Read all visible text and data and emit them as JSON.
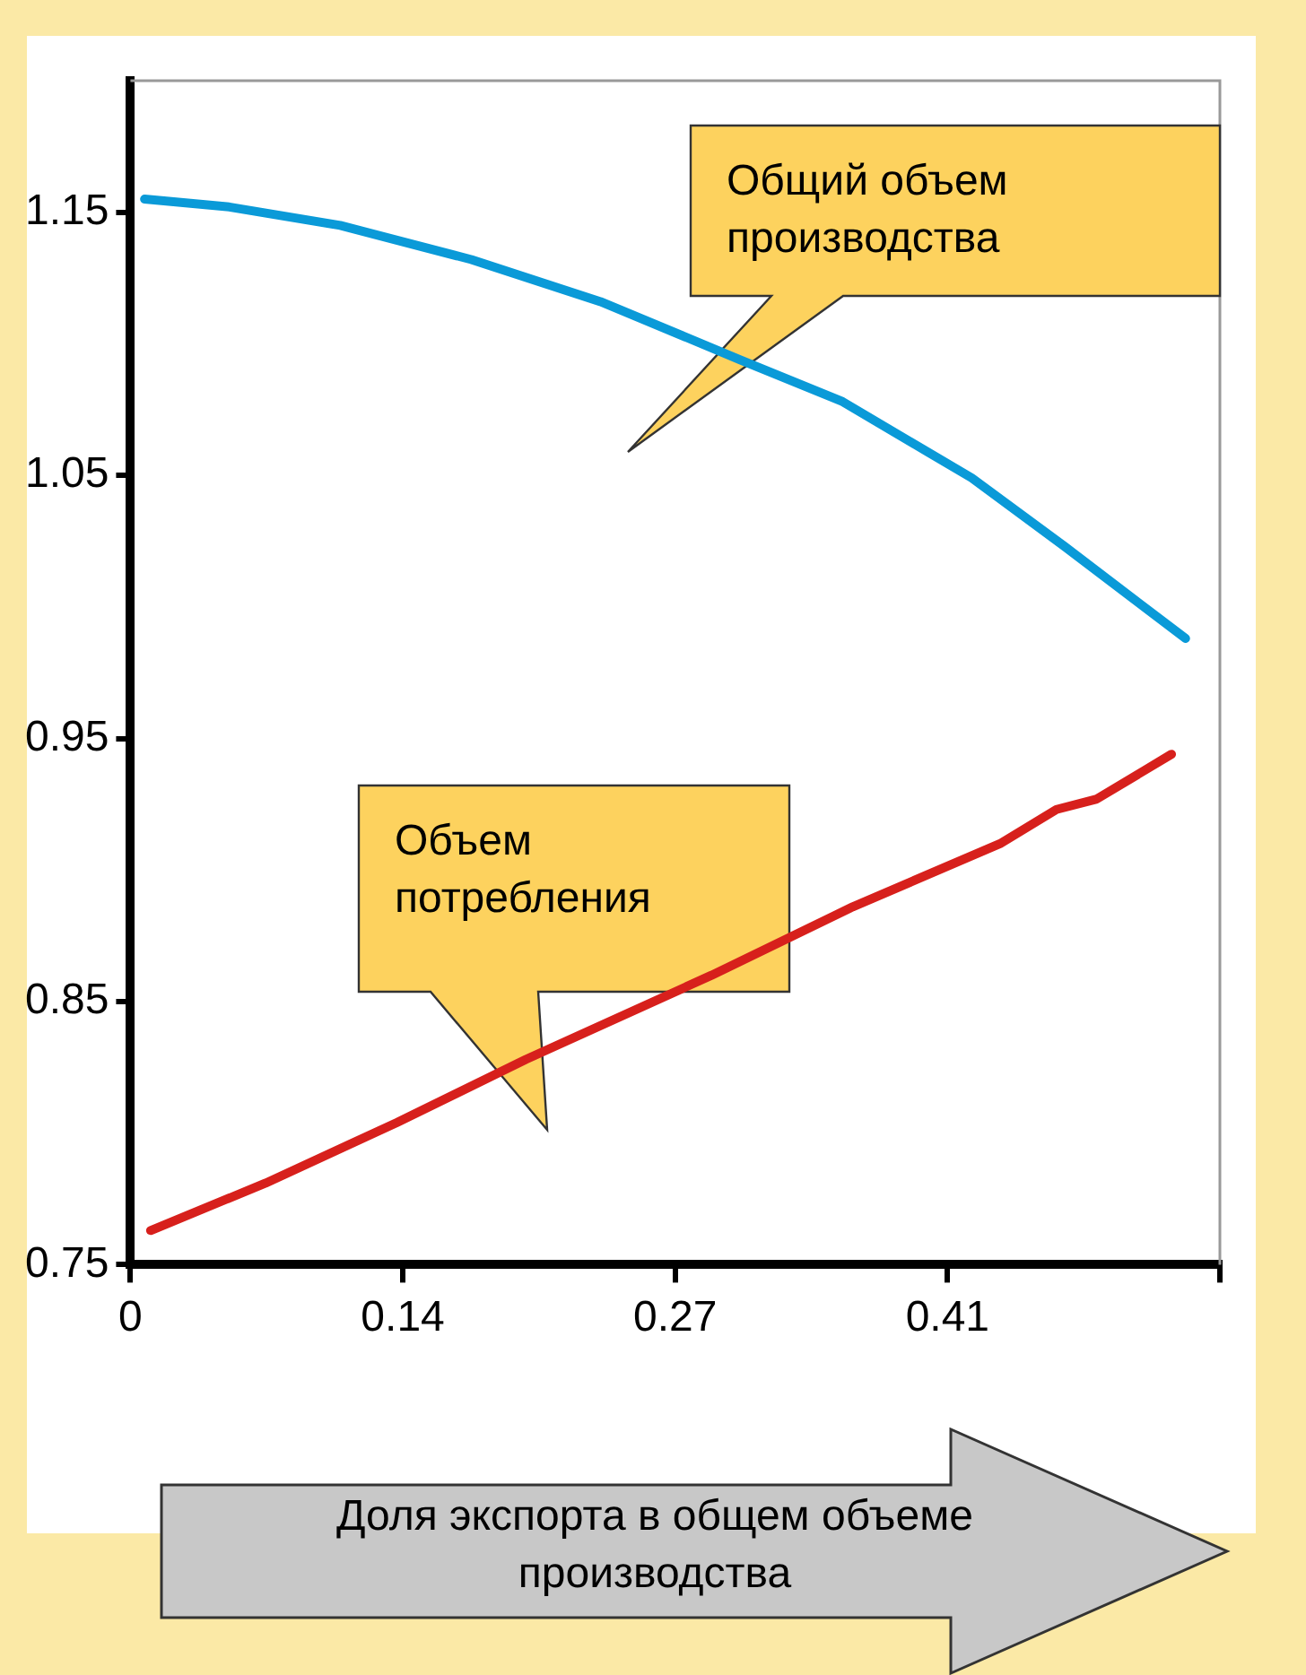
{
  "chart_data": {
    "type": "line",
    "xlabel": "Доля экспорта в общем объеме производства",
    "annotations": [
      "Общий объем производства",
      "Объем потребления"
    ],
    "series": [
      {
        "color": "#0a9ad8",
        "x": [
          0.007,
          0.049,
          0.104,
          0.169,
          0.233,
          0.302,
          0.353,
          0.417,
          0.463,
          0.523
        ],
        "values": [
          1.155,
          1.152,
          1.145,
          1.132,
          1.116,
          1.094,
          1.078,
          1.049,
          1.023,
          0.988
        ]
      },
      {
        "color": "#d7201c",
        "x": [
          0.01,
          0.067,
          0.132,
          0.196,
          0.288,
          0.358,
          0.431,
          0.459,
          0.479,
          0.516
        ],
        "values": [
          0.763,
          0.781,
          0.804,
          0.828,
          0.86,
          0.886,
          0.91,
          0.923,
          0.927,
          0.944
        ]
      }
    ],
    "xlim": [
      0,
      0.54
    ],
    "xticks": [
      0,
      {
        "value": 0.135,
        "label": "0.14"
      },
      0.27,
      {
        "value": 0.405,
        "label": "0.41"
      },
      {
        "value": 0.54,
        "label": null
      }
    ],
    "ylim": [
      0.75,
      1.2
    ],
    "yticks": [
      0.75,
      0.85,
      0.95,
      1.05,
      1.15
    ],
    "grid": false,
    "legend": false,
    "marker": "none",
    "line_style": "solid"
  }
}
